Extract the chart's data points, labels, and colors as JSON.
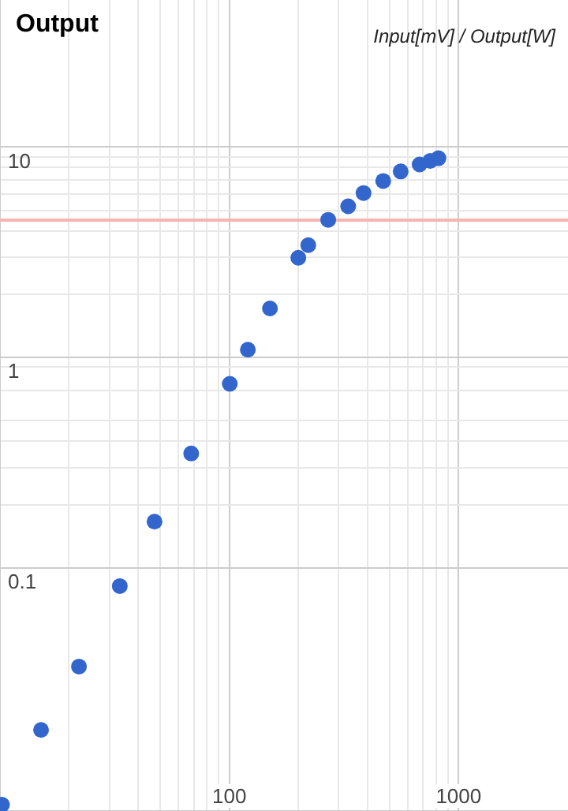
{
  "chart_data": {
    "type": "scatter",
    "title": "Output",
    "subtitle": "Input[mV] / Output[W]",
    "log": "xy",
    "grid": true,
    "marker": "circle",
    "x": [
      10.2,
      15.1,
      22.1,
      33.3,
      47.2,
      68.2,
      100.5,
      120.5,
      150.4,
      200,
      221,
      270,
      330,
      385,
      469,
      559,
      676,
      752,
      817
    ],
    "series": [
      {
        "color": "#3366cc",
        "values": [
          0.0075,
          0.017,
          0.034,
          0.082,
          0.166,
          0.35,
          0.75,
          1.09,
          1.71,
          2.98,
          3.42,
          4.51,
          5.23,
          6.05,
          6.9,
          7.66,
          8.27,
          8.6,
          8.85
        ]
      }
    ],
    "xlim": [
      10,
      3000
    ],
    "ylim": [
      0.007,
      50
    ],
    "xticks": [
      {
        "value": 20,
        "label": null
      },
      {
        "value": 30,
        "label": null
      },
      {
        "value": 40,
        "label": null
      },
      {
        "value": 50,
        "label": null
      },
      {
        "value": 60,
        "label": null
      },
      {
        "value": 70,
        "label": null
      },
      {
        "value": 80,
        "label": null
      },
      {
        "value": 90,
        "label": null
      },
      100,
      {
        "value": 200,
        "label": null
      },
      {
        "value": 300,
        "label": null
      },
      {
        "value": 400,
        "label": null
      },
      {
        "value": 500,
        "label": null
      },
      {
        "value": 600,
        "label": null
      },
      {
        "value": 700,
        "label": null
      },
      {
        "value": 800,
        "label": null
      },
      {
        "value": 900,
        "label": null
      },
      1000
    ],
    "yticks": [
      0.1,
      {
        "value": 0.2,
        "label": null
      },
      {
        "value": 0.3,
        "label": null
      },
      {
        "value": 0.4,
        "label": null
      },
      {
        "value": 0.5,
        "label": null
      },
      {
        "value": 0.7,
        "label": null
      },
      {
        "value": 0.9,
        "label": null
      },
      1,
      {
        "value": 2,
        "label": null
      },
      {
        "value": 3,
        "label": null
      },
      {
        "value": 4,
        "label": null
      },
      {
        "value": 5,
        "label": null
      },
      {
        "value": 6,
        "label": null
      },
      {
        "value": 7,
        "label": null
      },
      {
        "value": 8,
        "label": null
      },
      {
        "value": 9,
        "label": null
      },
      10
    ],
    "ref_lines": [
      {
        "axis": "y",
        "value": 4.5,
        "color": "#f4b6ae"
      }
    ]
  }
}
